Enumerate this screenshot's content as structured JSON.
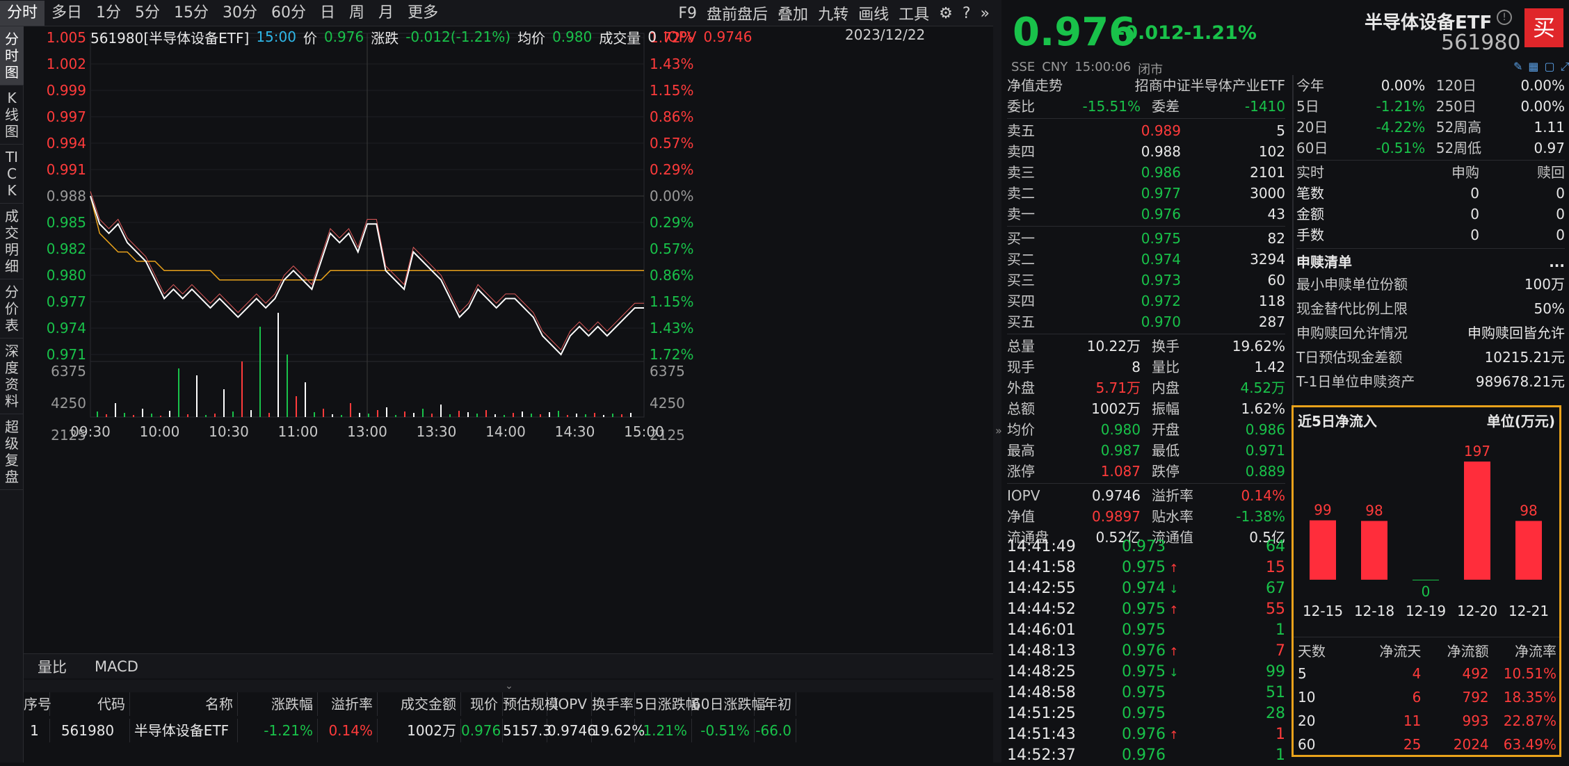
{
  "period_tabs": [
    "分时",
    "多日",
    "1分",
    "5分",
    "15分",
    "30分",
    "60分",
    "日",
    "周",
    "月",
    "更多"
  ],
  "tool_tabs": [
    "F9",
    "盘前盘后",
    "叠加",
    "九转",
    "画线",
    "工具"
  ],
  "left_tabs": [
    "分时图",
    "K线图",
    "TICK",
    "成交明细",
    "分价表",
    "深度资料",
    "超级复盘"
  ],
  "chart_header": {
    "code_name": "561980[半导体设备ETF]",
    "time": "15:00",
    "price_label": "价",
    "price": "0.976",
    "change_label": "涨跌",
    "change": "-0.012(-1.21%)",
    "avg_label": "均价",
    "avg": "0.980",
    "vol_label": "成交量",
    "vol": "0",
    "iopv_label": "IOPV",
    "iopv": "0.9746",
    "date": "2023/12/22"
  },
  "price_axis_left": [
    "1.005",
    "1.002",
    "0.999",
    "0.997",
    "0.994",
    "0.991",
    "0.988",
    "0.985",
    "0.982",
    "0.980",
    "0.977",
    "0.974",
    "0.971"
  ],
  "pct_axis_right": [
    "1.72%",
    "1.43%",
    "1.15%",
    "0.86%",
    "0.57%",
    "0.29%",
    "0.00%",
    "0.29%",
    "0.57%",
    "0.86%",
    "1.15%",
    "1.43%",
    "1.72%"
  ],
  "vol_axis": [
    "6375",
    "4250",
    "2125"
  ],
  "time_axis": [
    "09:30",
    "10:00",
    "10:30",
    "11:00",
    "13:00",
    "13:30",
    "14:00",
    "14:30",
    "15:00"
  ],
  "bottom_tabs": [
    "量比",
    "MACD"
  ],
  "table": {
    "headers": [
      "序号",
      "代码",
      "名称",
      "涨跌幅",
      "溢折率",
      "成交金额",
      "现价",
      "预估规模",
      "IOPV",
      "换手率",
      "5日涨跌幅",
      "60日涨跌幅",
      "年初"
    ],
    "row": [
      "1",
      "561980",
      "半导体设备ETF",
      "-1.21%",
      "0.14%",
      "1002万",
      "0.976",
      "5157.3",
      "0.9746",
      "19.62%",
      "-1.21%",
      "-0.51%",
      "-66.0"
    ]
  },
  "quote": {
    "price": "0.976",
    "change": "-0.012",
    "pct": "-1.21%",
    "name": "半导体设备ETF",
    "code": "561980",
    "exchange": "SSE",
    "currency": "CNY",
    "time": "15:00:06",
    "status": "闭市",
    "buy_label": "买"
  },
  "nav_row": {
    "label": "净值走势",
    "index": "招商中证半导体产业ETF"
  },
  "weibi": {
    "label": "委比",
    "value": "-15.51%",
    "label2": "委差",
    "value2": "-1410"
  },
  "asks": [
    {
      "label": "卖五",
      "price": "0.989",
      "vol": "5"
    },
    {
      "label": "卖四",
      "price": "0.988",
      "vol": "102"
    },
    {
      "label": "卖三",
      "price": "0.986",
      "vol": "2101"
    },
    {
      "label": "卖二",
      "price": "0.977",
      "vol": "3000"
    },
    {
      "label": "卖一",
      "price": "0.976",
      "vol": "43"
    }
  ],
  "bids": [
    {
      "label": "买一",
      "price": "0.975",
      "vol": "82"
    },
    {
      "label": "买二",
      "price": "0.974",
      "vol": "3294"
    },
    {
      "label": "买三",
      "price": "0.973",
      "vol": "60"
    },
    {
      "label": "买四",
      "price": "0.972",
      "vol": "118"
    },
    {
      "label": "买五",
      "price": "0.970",
      "vol": "287"
    }
  ],
  "stats": [
    {
      "l1": "总量",
      "v1": "10.22万",
      "l2": "换手",
      "v2": "19.62%"
    },
    {
      "l1": "现手",
      "v1": "8",
      "l2": "量比",
      "v2": "1.42"
    },
    {
      "l1": "外盘",
      "v1": "5.71万",
      "l2": "内盘",
      "v2": "4.52万"
    },
    {
      "l1": "总额",
      "v1": "1002万",
      "l2": "振幅",
      "v2": "1.62%"
    },
    {
      "l1": "均价",
      "v1": "0.980",
      "l2": "开盘",
      "v2": "0.986"
    },
    {
      "l1": "最高",
      "v1": "0.987",
      "l2": "最低",
      "v2": "0.971"
    },
    {
      "l1": "涨停",
      "v1": "1.087",
      "l2": "跌停",
      "v2": "0.889"
    }
  ],
  "iopv_stats": [
    {
      "l1": "IOPV",
      "v1": "0.9746",
      "l2": "溢折率",
      "v2": "0.14%"
    },
    {
      "l1": "净值",
      "v1": "0.9897",
      "l2": "贴水率",
      "v2": "-1.38%"
    },
    {
      "l1": "流通盘",
      "v1": "0.52亿",
      "l2": "流通值",
      "v2": "0.5亿"
    }
  ],
  "ticks": [
    {
      "t": "14:41:49",
      "p": "0.973",
      "v": "64",
      "dir": ""
    },
    {
      "t": "14:41:58",
      "p": "0.975",
      "v": "15",
      "dir": "up"
    },
    {
      "t": "14:42:55",
      "p": "0.974",
      "v": "67",
      "dir": "down"
    },
    {
      "t": "14:44:52",
      "p": "0.975",
      "v": "55",
      "dir": "up"
    },
    {
      "t": "14:46:01",
      "p": "0.975",
      "v": "1",
      "dir": ""
    },
    {
      "t": "14:48:13",
      "p": "0.976",
      "v": "7",
      "dir": "up"
    },
    {
      "t": "14:48:25",
      "p": "0.975",
      "v": "99",
      "dir": "down"
    },
    {
      "t": "14:48:58",
      "p": "0.975",
      "v": "51",
      "dir": ""
    },
    {
      "t": "14:51:25",
      "p": "0.975",
      "v": "28",
      "dir": ""
    },
    {
      "t": "14:51:43",
      "p": "0.976",
      "v": "1",
      "dir": "up"
    },
    {
      "t": "14:52:37",
      "p": "0.976",
      "v": "1",
      "dir": ""
    }
  ],
  "perf": [
    {
      "l1": "今年",
      "v1": "0.00%",
      "l2": "120日",
      "v2": "0.00%"
    },
    {
      "l1": "5日",
      "v1": "-1.21%",
      "l2": "250日",
      "v2": "0.00%"
    },
    {
      "l1": "20日",
      "v1": "-4.22%",
      "l2": "52周高",
      "v2": "1.11"
    },
    {
      "l1": "60日",
      "v1": "-0.51%",
      "l2": "52周低",
      "v2": "0.97"
    }
  ],
  "realtime": {
    "headers": [
      "实时",
      "申购",
      "赎回"
    ],
    "rows": [
      [
        "笔数",
        "0",
        "0"
      ],
      [
        "金额",
        "0",
        "0"
      ],
      [
        "手数",
        "0",
        "0"
      ]
    ]
  },
  "redeem": {
    "title": "申赎清单",
    "more": "...",
    "rows": [
      [
        "最小申赎单位份额",
        "100万"
      ],
      [
        "现金替代比例上限",
        "50%"
      ],
      [
        "申购赎回允许情况",
        "申购赎回皆允许"
      ],
      [
        "T日预估现金差额",
        "10215.21元"
      ],
      [
        "T-1日单位申赎资产",
        "989678.21元"
      ]
    ]
  },
  "flow": {
    "title": "近5日净流入",
    "unit": "单位(万元)",
    "headers": [
      "天数",
      "净流天",
      "净流额",
      "净流率"
    ],
    "rows": [
      [
        "5",
        "4",
        "492",
        "10.51%"
      ],
      [
        "10",
        "6",
        "792",
        "18.35%"
      ],
      [
        "20",
        "11",
        "993",
        "22.87%"
      ],
      [
        "60",
        "25",
        "2024",
        "63.49%"
      ]
    ]
  },
  "chart_data": {
    "type": "bar",
    "categories": [
      "12-15",
      "12-18",
      "12-19",
      "12-20",
      "12-21"
    ],
    "values": [
      99,
      98,
      0,
      197,
      98
    ],
    "title": "近5日净流入",
    "ylabel": "单位(万元)"
  },
  "intraday": {
    "price": [
      0.988,
      0.985,
      0.984,
      0.985,
      0.983,
      0.982,
      0.981,
      0.979,
      0.977,
      0.978,
      0.977,
      0.978,
      0.977,
      0.976,
      0.977,
      0.976,
      0.975,
      0.976,
      0.977,
      0.976,
      0.977,
      0.979,
      0.98,
      0.979,
      0.978,
      0.981,
      0.984,
      0.983,
      0.984,
      0.982,
      0.985,
      0.985,
      0.98,
      0.979,
      0.978,
      0.982,
      0.981,
      0.98,
      0.979,
      0.977,
      0.975,
      0.976,
      0.978,
      0.977,
      0.976,
      0.977,
      0.977,
      0.976,
      0.975,
      0.973,
      0.972,
      0.971,
      0.973,
      0.974,
      0.973,
      0.974,
      0.973,
      0.974,
      0.975,
      0.976,
      0.976
    ],
    "avg": [
      0.988,
      0.984,
      0.983,
      0.982,
      0.982,
      0.981,
      0.981,
      0.981,
      0.98,
      0.98,
      0.98,
      0.98,
      0.98,
      0.98,
      0.979,
      0.979,
      0.979,
      0.979,
      0.979,
      0.979,
      0.979,
      0.979,
      0.979,
      0.979,
      0.979,
      0.979,
      0.98,
      0.98,
      0.98,
      0.98,
      0.98,
      0.98,
      0.98,
      0.98,
      0.98,
      0.98,
      0.98,
      0.98,
      0.98,
      0.98,
      0.98,
      0.98,
      0.98,
      0.98,
      0.98,
      0.98,
      0.98,
      0.98,
      0.98,
      0.98,
      0.98,
      0.98,
      0.98,
      0.98,
      0.98,
      0.98,
      0.98,
      0.98,
      0.98,
      0.98,
      0.98
    ],
    "ymin": 0.971,
    "ymax": 1.005
  }
}
